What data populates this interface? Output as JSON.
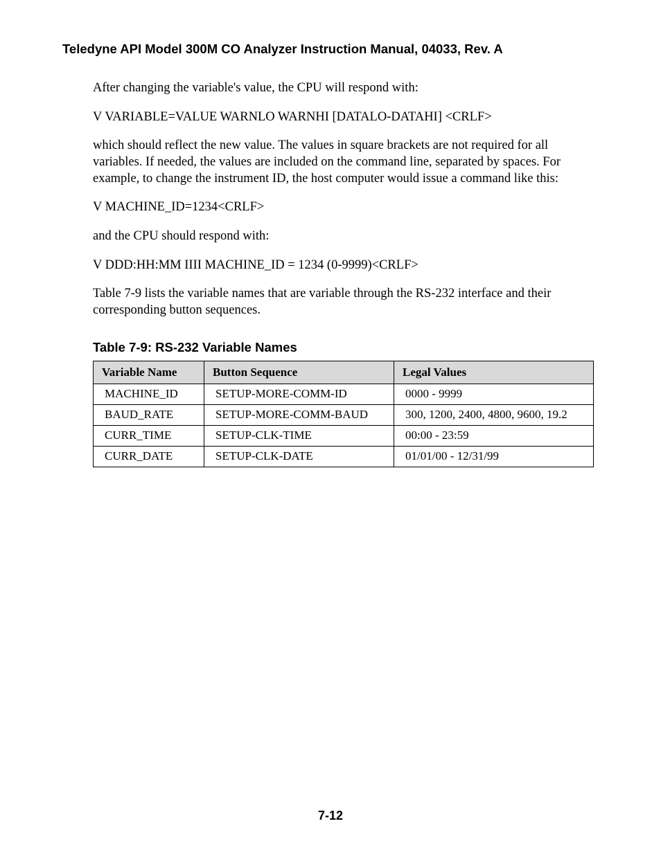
{
  "header": {
    "title": "Teledyne API Model 300M CO Analyzer Instruction Manual, 04033, Rev. A"
  },
  "paragraphs": {
    "p1": "After changing the variable's value, the CPU will respond with:",
    "p2": "V VARIABLE=VALUE WARNLO WARNHI [DATALO-DATAHI] <CRLF>",
    "p3": "which should reflect the new value. The values in square brackets are not required for all variables. If needed, the values are included on the command line, separated by spaces. For example, to change the instrument ID, the host computer would issue a command like this:",
    "p4": "V MACHINE_ID=1234<CRLF>",
    "p5": "and the CPU should respond with:",
    "p6": "V  DDD:HH:MM  IIII  MACHINE_ID = 1234 (0-9999)<CRLF>",
    "p7": "Table 7-9 lists the variable names that are variable through the RS-232 interface and their corresponding button sequences."
  },
  "table": {
    "caption": "Table 7-9:  RS-232 Variable Names",
    "columns": [
      "Variable Name",
      "Button Sequence",
      "Legal Values"
    ],
    "rows": [
      [
        "MACHINE_ID",
        "SETUP-MORE-COMM-ID",
        "0000 - 9999"
      ],
      [
        "BAUD_RATE",
        "SETUP-MORE-COMM-BAUD",
        "300, 1200, 2400, 4800, 9600, 19.2"
      ],
      [
        "CURR_TIME",
        "SETUP-CLK-TIME",
        "00:00 - 23:59"
      ],
      [
        "CURR_DATE",
        "SETUP-CLK-DATE",
        "01/01/00 - 12/31/99"
      ]
    ],
    "header_bg": "#d9d9d9",
    "border_color": "#000000",
    "font_family": "Times New Roman",
    "font_size_pt": 13
  },
  "footer": {
    "page_number": "7-12"
  },
  "styling": {
    "page_bg": "#ffffff",
    "text_color": "#000000",
    "header_font": "Arial",
    "body_font": "Times New Roman"
  }
}
